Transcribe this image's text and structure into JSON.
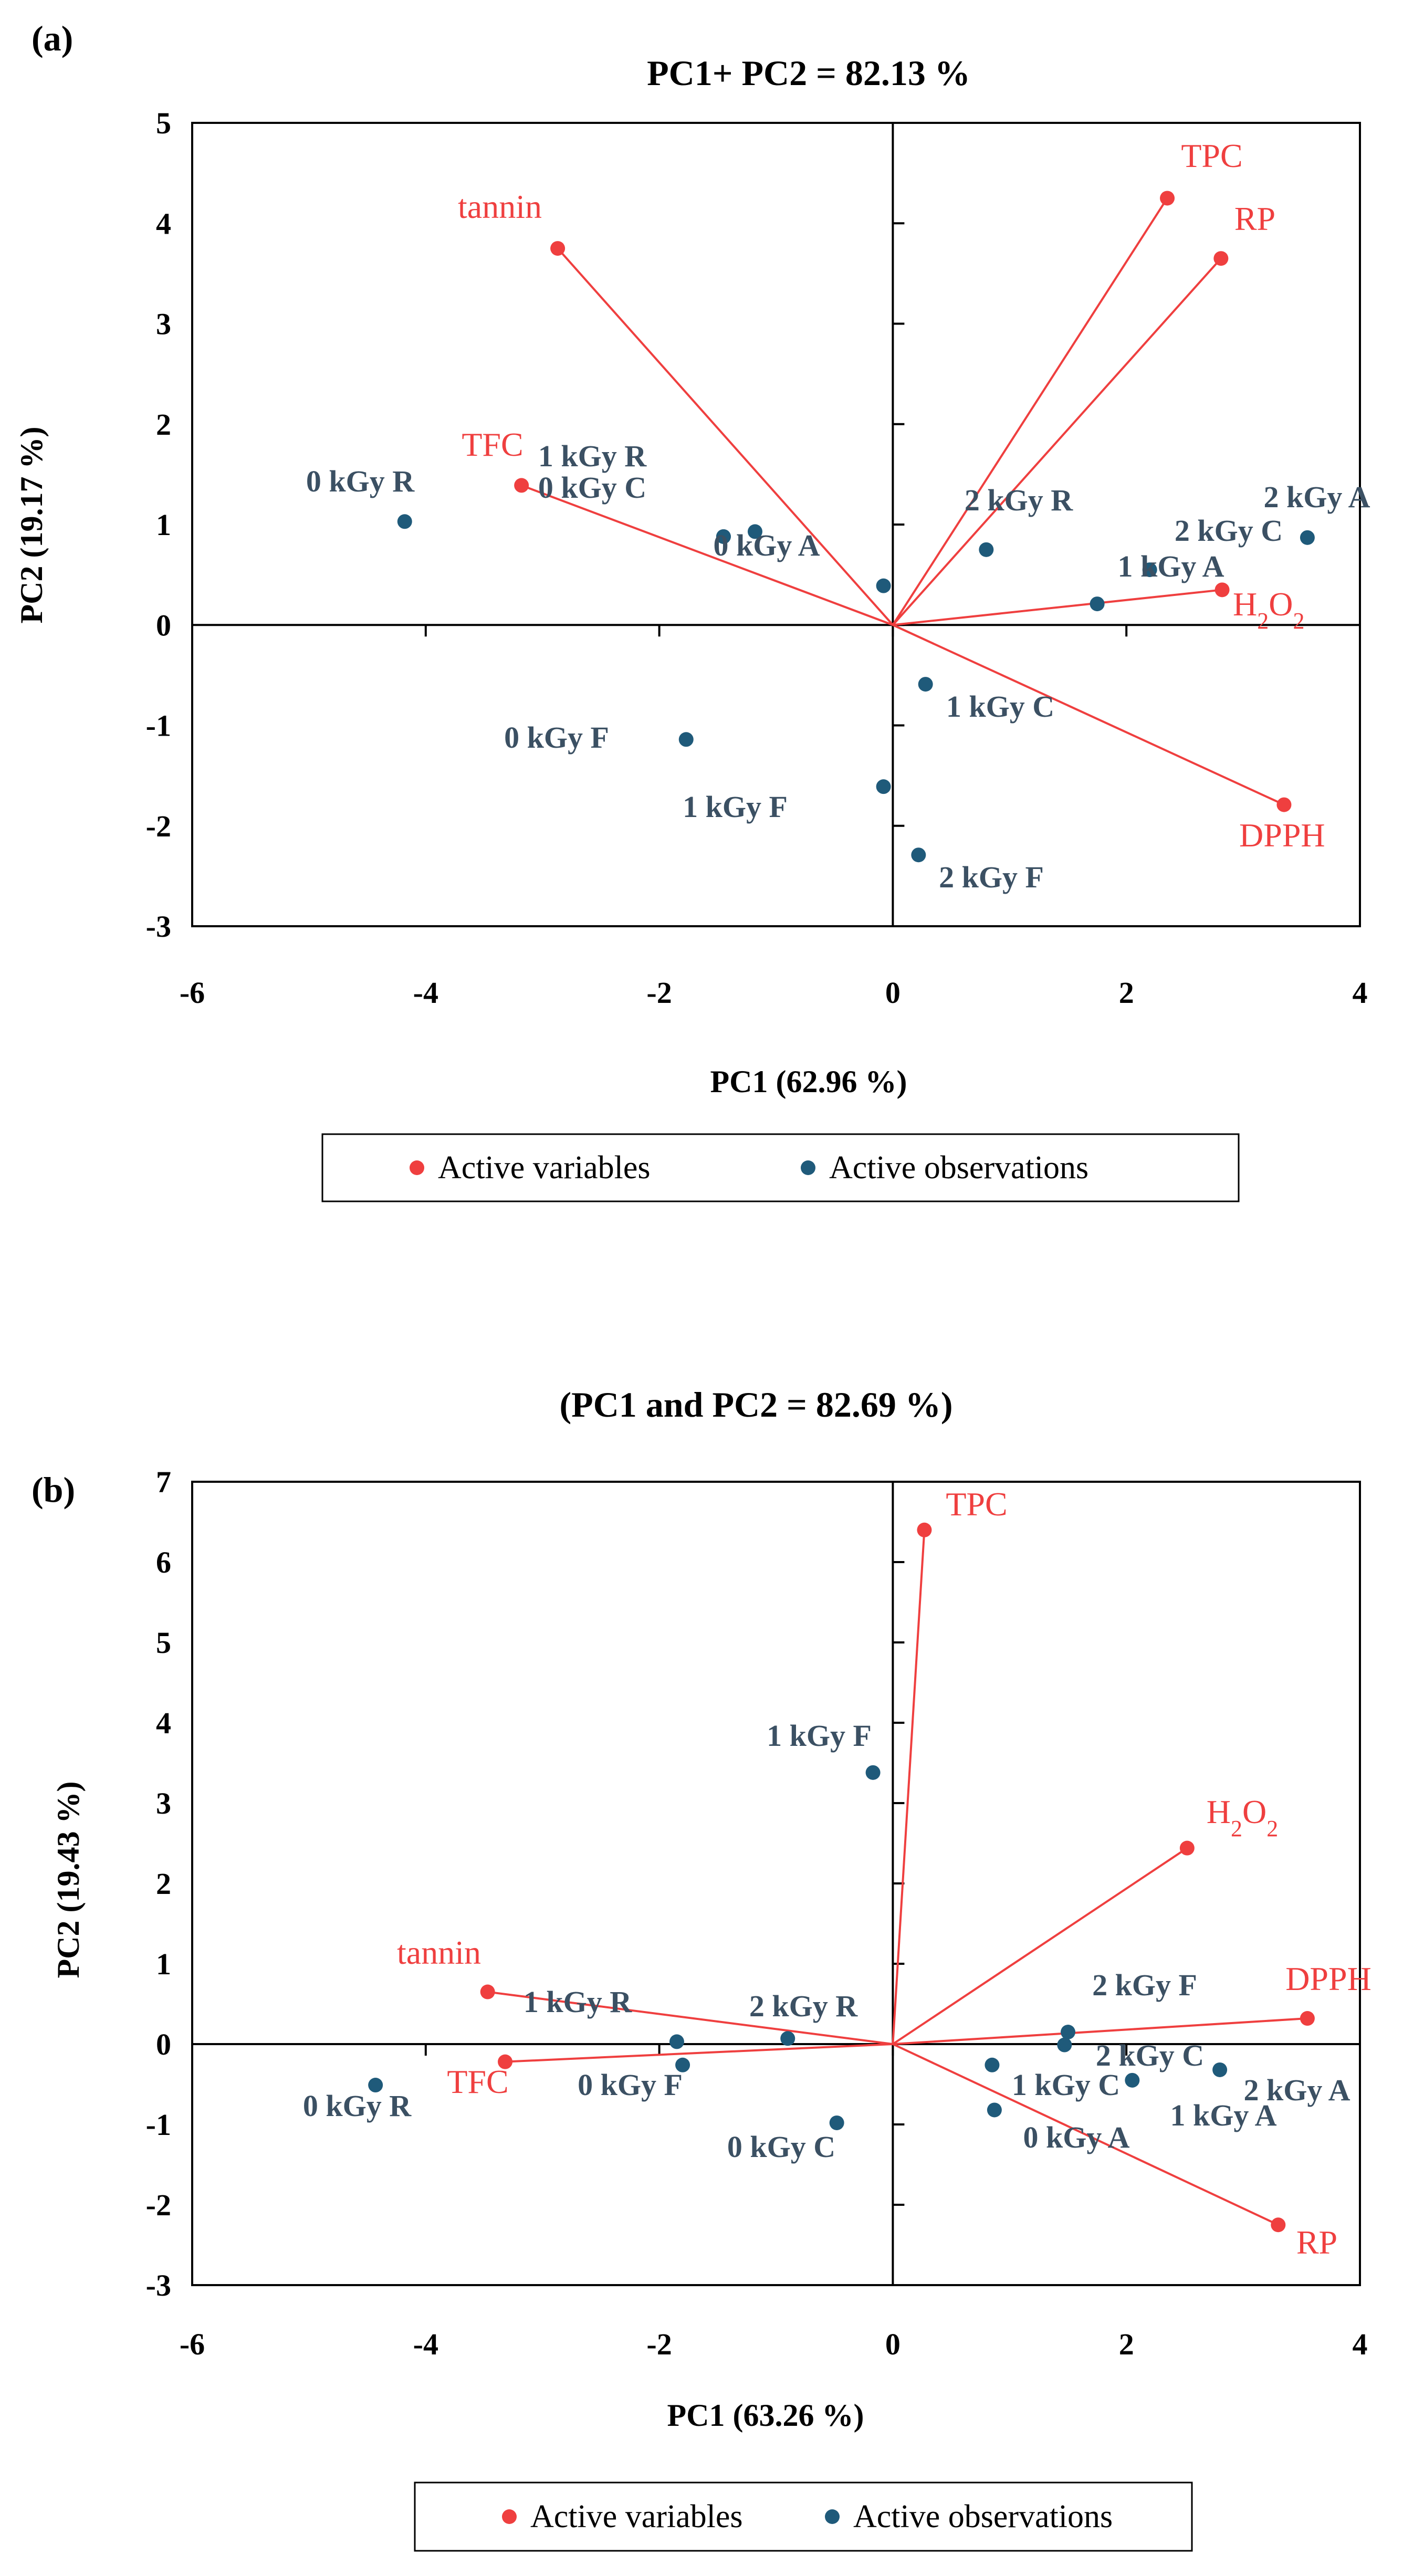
{
  "chart_data": [
    {
      "type": "scatter",
      "panel_label": "(a)",
      "title": "PC1+ PC2 = 82.13 %",
      "xlabel": "PC1 (62.96 %)",
      "ylabel": "PC2 (19.17 %)",
      "xlim": [
        -6,
        4
      ],
      "ylim": [
        -3,
        5
      ],
      "xticks": [
        -6,
        -4,
        -2,
        0,
        2,
        4
      ],
      "yticks": [
        -3,
        -2,
        -1,
        0,
        1,
        2,
        3,
        4,
        5
      ],
      "legend": [
        "Active variables",
        "Active observations"
      ],
      "variables": [
        {
          "label": "tannin",
          "x": -2.87,
          "y": 3.75
        },
        {
          "label": "TPC",
          "x": 2.35,
          "y": 4.25
        },
        {
          "label": "RP",
          "x": 2.81,
          "y": 3.65
        },
        {
          "label": "TFC",
          "x": -3.18,
          "y": 1.39
        },
        {
          "label": "H2O2",
          "x": 2.82,
          "y": 0.35
        },
        {
          "label": "DPPH",
          "x": 3.35,
          "y": -1.79
        }
      ],
      "observations": [
        {
          "label": "0 kGy R",
          "x": -4.18,
          "y": 1.03
        },
        {
          "label": "1 kGy R",
          "x": -1.45,
          "y": 0.88
        },
        {
          "label": "0 kGy C",
          "x": -1.45,
          "y": 0.88
        },
        {
          "label": "0 kGy A",
          "x": -1.18,
          "y": 0.93
        },
        {
          "label": "",
          "x": -0.08,
          "y": 0.39
        },
        {
          "label": "2 kGy R",
          "x": 0.8,
          "y": 0.75
        },
        {
          "label": "1 kGy A",
          "x": 2.2,
          "y": 0.55
        },
        {
          "label": "2 kGy C",
          "x": 1.75,
          "y": 0.21
        },
        {
          "label": "2 kGy A",
          "x": 3.55,
          "y": 0.87
        },
        {
          "label": "1 kGy C",
          "x": 0.28,
          "y": -0.59
        },
        {
          "label": "0 kGy F",
          "x": -1.77,
          "y": -1.14
        },
        {
          "label": "1 kGy F",
          "x": -0.08,
          "y": -1.61
        },
        {
          "label": "2 kGy F",
          "x": 0.22,
          "y": -2.29
        }
      ]
    },
    {
      "type": "scatter",
      "panel_label": "(b)",
      "title": "(PC1 and PC2 = 82.69 %)",
      "xlabel": "PC1 (63.26 %)",
      "ylabel": "PC2 (19.43 %)",
      "xlim": [
        -6,
        4
      ],
      "ylim": [
        -3,
        7
      ],
      "xticks": [
        -6,
        -4,
        -2,
        0,
        2,
        4
      ],
      "yticks": [
        -3,
        -2,
        -1,
        0,
        1,
        2,
        3,
        4,
        5,
        6,
        7
      ],
      "legend": [
        "Active variables",
        "Active observations"
      ],
      "variables": [
        {
          "label": "TPC",
          "x": 0.27,
          "y": 6.4
        },
        {
          "label": "H2O2",
          "x": 2.52,
          "y": 2.44
        },
        {
          "label": "tannin",
          "x": -3.47,
          "y": 0.65
        },
        {
          "label": "DPPH",
          "x": 3.55,
          "y": 0.32
        },
        {
          "label": "TFC",
          "x": -3.32,
          "y": -0.22
        },
        {
          "label": "RP",
          "x": 3.3,
          "y": -2.25
        }
      ],
      "observations": [
        {
          "label": "1 kGy F",
          "x": -0.17,
          "y": 3.38
        },
        {
          "label": "1 kGy R",
          "x": -1.85,
          "y": 0.03
        },
        {
          "label": "2 kGy R",
          "x": -0.9,
          "y": 0.07
        },
        {
          "label": "0 kGy R",
          "x": -4.43,
          "y": -0.51
        },
        {
          "label": "0 kGy F",
          "x": -1.8,
          "y": -0.26
        },
        {
          "label": "0 kGy C",
          "x": -0.48,
          "y": -0.98
        },
        {
          "label": "2 kGy F",
          "x": 1.5,
          "y": 0.15
        },
        {
          "label": "1 kGy C",
          "x": 0.85,
          "y": -0.26
        },
        {
          "label": "2 kGy C",
          "x": 1.47,
          "y": -0.01
        },
        {
          "label": "0 kGy A",
          "x": 0.87,
          "y": -0.82
        },
        {
          "label": "1 kGy A",
          "x": 2.05,
          "y": -0.45
        },
        {
          "label": "2 kGy A",
          "x": 2.8,
          "y": -0.32
        }
      ]
    }
  ],
  "colors": {
    "variable": "#ef3f3f",
    "observation": "#1f5a7a",
    "observation_text": "#3b5063",
    "axis": "#000000"
  }
}
